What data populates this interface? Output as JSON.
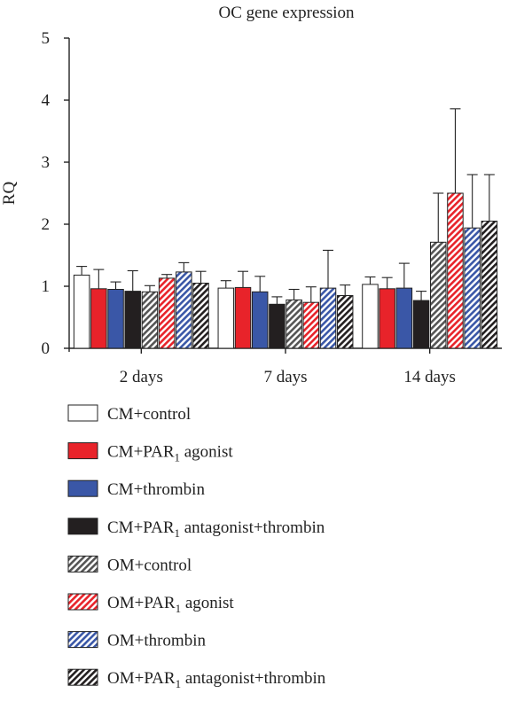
{
  "chart_data": {
    "type": "bar",
    "title": "OC gene expression",
    "ylabel": "RQ",
    "xlabel": "",
    "ylim": [
      0,
      5
    ],
    "yticks": [
      0,
      1,
      2,
      3,
      4,
      5
    ],
    "categories": [
      "2 days",
      "7 days",
      "14 days"
    ],
    "grid": false,
    "legend_position": "bottom",
    "series": [
      {
        "name": "CM+control",
        "name_sub": "",
        "name_tail": "",
        "fill": "#ffffff",
        "hatch": false,
        "values": [
          1.18,
          0.97,
          1.03
        ],
        "errors": [
          0.14,
          0.12,
          0.12
        ]
      },
      {
        "name": "CM+PAR",
        "name_sub": "1",
        "name_tail": " agonist",
        "fill": "#e8232a",
        "hatch": false,
        "values": [
          0.96,
          0.98,
          0.96
        ],
        "errors": [
          0.31,
          0.26,
          0.18
        ]
      },
      {
        "name": "CM+thrombin",
        "name_sub": "",
        "name_tail": "",
        "fill": "#3a57a7",
        "hatch": false,
        "values": [
          0.95,
          0.91,
          0.97
        ],
        "errors": [
          0.12,
          0.25,
          0.4
        ]
      },
      {
        "name": "CM+PAR",
        "name_sub": "1",
        "name_tail": " antagonist+thrombin",
        "fill": "#231f20",
        "hatch": false,
        "values": [
          0.92,
          0.71,
          0.77
        ],
        "errors": [
          0.33,
          0.12,
          0.15
        ]
      },
      {
        "name": "OM+control",
        "name_sub": "",
        "name_tail": "",
        "fill": "#ffffff",
        "hatch": true,
        "values": [
          0.91,
          0.78,
          1.71
        ],
        "errors": [
          0.1,
          0.17,
          0.79
        ]
      },
      {
        "name": "OM+PAR",
        "name_sub": "1",
        "name_tail": " agonist",
        "fill": "#e8232a",
        "hatch": true,
        "values": [
          1.13,
          0.74,
          2.5
        ],
        "errors": [
          0.06,
          0.25,
          1.36
        ]
      },
      {
        "name": "OM+thrombin",
        "name_sub": "",
        "name_tail": "",
        "fill": "#3a57a7",
        "hatch": true,
        "values": [
          1.23,
          0.97,
          1.94
        ],
        "errors": [
          0.15,
          0.61,
          0.86
        ]
      },
      {
        "name": "OM+PAR",
        "name_sub": "1",
        "name_tail": " antagonist+thrombin",
        "fill": "#231f20",
        "hatch": true,
        "values": [
          1.05,
          0.85,
          2.05
        ],
        "errors": [
          0.19,
          0.17,
          0.75
        ]
      }
    ]
  }
}
